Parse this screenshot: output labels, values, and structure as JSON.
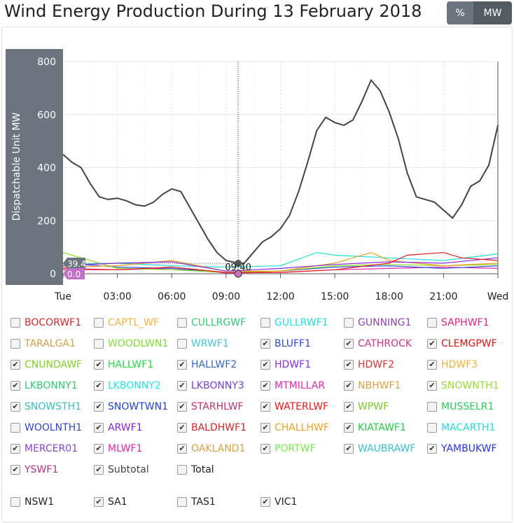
{
  "title": "Wind Energy Production During 13 February 2018",
  "toggle": {
    "percent": "%",
    "mw": "MW"
  },
  "chart_data": {
    "type": "line",
    "ylabel": "Dispatchable Unit MW",
    "ylim": [
      0,
      800
    ],
    "yticks": [
      "0",
      "200",
      "400",
      "600",
      "800"
    ],
    "xticks": [
      "Tue",
      "03:00",
      "06:00",
      "09:00",
      "12:00",
      "15:00",
      "18:00",
      "21:00",
      "Wed"
    ],
    "xlim_hours": [
      0,
      24
    ],
    "grid": true,
    "cursor": {
      "time": "09:40",
      "value_top": "39.4",
      "value_bottom": "0.0"
    },
    "series": [
      {
        "name": "Subtotal",
        "color": "#444444",
        "hours": [
          0,
          0.5,
          1,
          1.5,
          2,
          2.5,
          3,
          3.5,
          4,
          4.5,
          5,
          5.5,
          6,
          6.5,
          7,
          7.5,
          8,
          8.5,
          9,
          9.667,
          10,
          10.5,
          11,
          11.5,
          12,
          12.5,
          13,
          13.5,
          14,
          14.5,
          15,
          15.5,
          16,
          16.5,
          17,
          17.5,
          18,
          18.5,
          19,
          19.5,
          20,
          20.5,
          21,
          21.5,
          22,
          22.5,
          23,
          23.5,
          24
        ],
        "values": [
          450,
          420,
          400,
          340,
          290,
          280,
          285,
          275,
          260,
          255,
          270,
          300,
          320,
          310,
          250,
          190,
          130,
          80,
          50,
          40,
          40,
          80,
          120,
          140,
          170,
          220,
          310,
          420,
          540,
          590,
          570,
          560,
          580,
          650,
          730,
          690,
          610,
          510,
          380,
          290,
          280,
          270,
          240,
          210,
          260,
          330,
          350,
          410,
          560
        ]
      },
      {
        "name": "CLEMGPWF",
        "color": "#e41a1c",
        "hours": [
          0,
          3,
          6,
          9,
          12,
          15,
          18,
          19,
          21,
          22,
          24
        ],
        "values": [
          20,
          15,
          25,
          5,
          5,
          15,
          40,
          70,
          80,
          60,
          50
        ]
      },
      {
        "name": "HDWF1",
        "color": "#8a2be2",
        "hours": [
          0,
          3,
          6,
          9,
          12,
          15,
          18,
          21,
          24
        ],
        "values": [
          30,
          40,
          45,
          10,
          20,
          35,
          45,
          40,
          60
        ]
      },
      {
        "name": "HDWF3",
        "color": "#f0a020",
        "hours": [
          0,
          3,
          6,
          9,
          12,
          15,
          17,
          18,
          21,
          24
        ],
        "values": [
          25,
          30,
          50,
          10,
          10,
          40,
          80,
          50,
          30,
          40
        ]
      },
      {
        "name": "LKBONNY2",
        "color": "#22dddd",
        "hours": [
          0,
          3,
          6,
          9,
          12,
          14,
          15,
          18,
          21,
          24
        ],
        "values": [
          35,
          40,
          30,
          25,
          30,
          80,
          70,
          60,
          50,
          75
        ]
      },
      {
        "name": "SNOWNTH1",
        "color": "#88dd22",
        "hours": [
          0,
          3,
          6,
          9,
          12,
          15,
          18,
          21,
          24
        ],
        "values": [
          80,
          20,
          15,
          5,
          10,
          30,
          35,
          30,
          35
        ]
      },
      {
        "name": "HALLWF2",
        "color": "#3355dd",
        "hours": [
          0,
          3,
          6,
          9,
          12,
          15,
          18,
          21,
          24
        ],
        "values": [
          40,
          25,
          20,
          5,
          10,
          25,
          30,
          20,
          30
        ]
      },
      {
        "name": "MTMILLAR",
        "color": "#ee22aa",
        "hours": [
          0,
          3,
          6,
          9,
          12,
          15,
          18,
          21,
          24
        ],
        "values": [
          15,
          15,
          20,
          3,
          5,
          15,
          20,
          25,
          20
        ]
      }
    ]
  },
  "units": [
    {
      "label": "BOCORWF1",
      "checked": false,
      "color": "#d62728"
    },
    {
      "label": "CAPTL_WF",
      "checked": false,
      "color": "#f5b041"
    },
    {
      "label": "CULLRGWF",
      "checked": false,
      "color": "#2ecc71"
    },
    {
      "label": "GULLRWF1",
      "checked": false,
      "color": "#1fe0e0"
    },
    {
      "label": "GUNNING1",
      "checked": false,
      "color": "#8e44ad"
    },
    {
      "label": "SAPHWF1",
      "checked": false,
      "color": "#e8208c"
    },
    {
      "label": "TARALGA1",
      "checked": false,
      "color": "#d4a047"
    },
    {
      "label": "WOODLWN1",
      "checked": false,
      "color": "#7fe030"
    },
    {
      "label": "WRWF1",
      "checked": false,
      "color": "#40c8d8"
    },
    {
      "label": "BLUFF1",
      "checked": true,
      "color": "#2a4bd7"
    },
    {
      "label": "CATHROCK",
      "checked": true,
      "color": "#d6308a"
    },
    {
      "label": "CLEMGPWF",
      "checked": true,
      "color": "#ee1111"
    },
    {
      "label": "CNUNDAWF",
      "checked": true,
      "color": "#7ed321"
    },
    {
      "label": "HALLWF1",
      "checked": true,
      "color": "#22dd44"
    },
    {
      "label": "HALLWF2",
      "checked": true,
      "color": "#3366cc"
    },
    {
      "label": "HDWF1",
      "checked": true,
      "color": "#8a2be2"
    },
    {
      "label": "HDWF2",
      "checked": true,
      "color": "#e03030"
    },
    {
      "label": "HDWF3",
      "checked": true,
      "color": "#f5b030"
    },
    {
      "label": "LKBONNY1",
      "checked": true,
      "color": "#2ecc71"
    },
    {
      "label": "LKBONNY2",
      "checked": true,
      "color": "#22e5e5"
    },
    {
      "label": "LKBONNY3",
      "checked": true,
      "color": "#7b3fd0"
    },
    {
      "label": "MTMILLAR",
      "checked": true,
      "color": "#ee22aa"
    },
    {
      "label": "NBHWF1",
      "checked": true,
      "color": "#e0a040"
    },
    {
      "label": "SNOWNTH1",
      "checked": true,
      "color": "#99dd33"
    },
    {
      "label": "SNOWSTH1",
      "checked": true,
      "color": "#33c0c0"
    },
    {
      "label": "SNOWTWN1",
      "checked": true,
      "color": "#2040d0"
    },
    {
      "label": "STARHLWF",
      "checked": true,
      "color": "#c03070"
    },
    {
      "label": "WATERLWF",
      "checked": true,
      "color": "#ee1111"
    },
    {
      "label": "WPWF",
      "checked": true,
      "color": "#77cc22"
    },
    {
      "label": "MUSSELR1",
      "checked": false,
      "color": "#22cc55"
    },
    {
      "label": "WOOLNTH1",
      "checked": false,
      "color": "#3344cc"
    },
    {
      "label": "ARWF1",
      "checked": true,
      "color": "#8822ee"
    },
    {
      "label": "BALDHWF1",
      "checked": true,
      "color": "#dd2222"
    },
    {
      "label": "CHALLHWF",
      "checked": true,
      "color": "#f0a020"
    },
    {
      "label": "KIATAWF1",
      "checked": true,
      "color": "#22cc44"
    },
    {
      "label": "MACARTH1",
      "checked": false,
      "color": "#22dddd"
    },
    {
      "label": "MERCER01",
      "checked": true,
      "color": "#8844cc"
    },
    {
      "label": "MLWF1",
      "checked": true,
      "color": "#ee22aa"
    },
    {
      "label": "OAKLAND1",
      "checked": true,
      "color": "#e0a040"
    },
    {
      "label": "PORTWF",
      "checked": true,
      "color": "#77ee44"
    },
    {
      "label": "WAUBRAWF",
      "checked": true,
      "color": "#33c0d0"
    },
    {
      "label": "YAMBUKWF",
      "checked": true,
      "color": "#2233dd"
    },
    {
      "label": "YSWF1",
      "checked": true,
      "color": "#c03080"
    },
    {
      "label": "Subtotal",
      "checked": true,
      "color": "#444444"
    },
    {
      "label": "Total",
      "checked": false,
      "color": "#222222"
    }
  ],
  "regions": [
    {
      "label": "NSW1",
      "checked": false
    },
    {
      "label": "SA1",
      "checked": true
    },
    {
      "label": "TAS1",
      "checked": false
    },
    {
      "label": "VIC1",
      "checked": true
    }
  ]
}
